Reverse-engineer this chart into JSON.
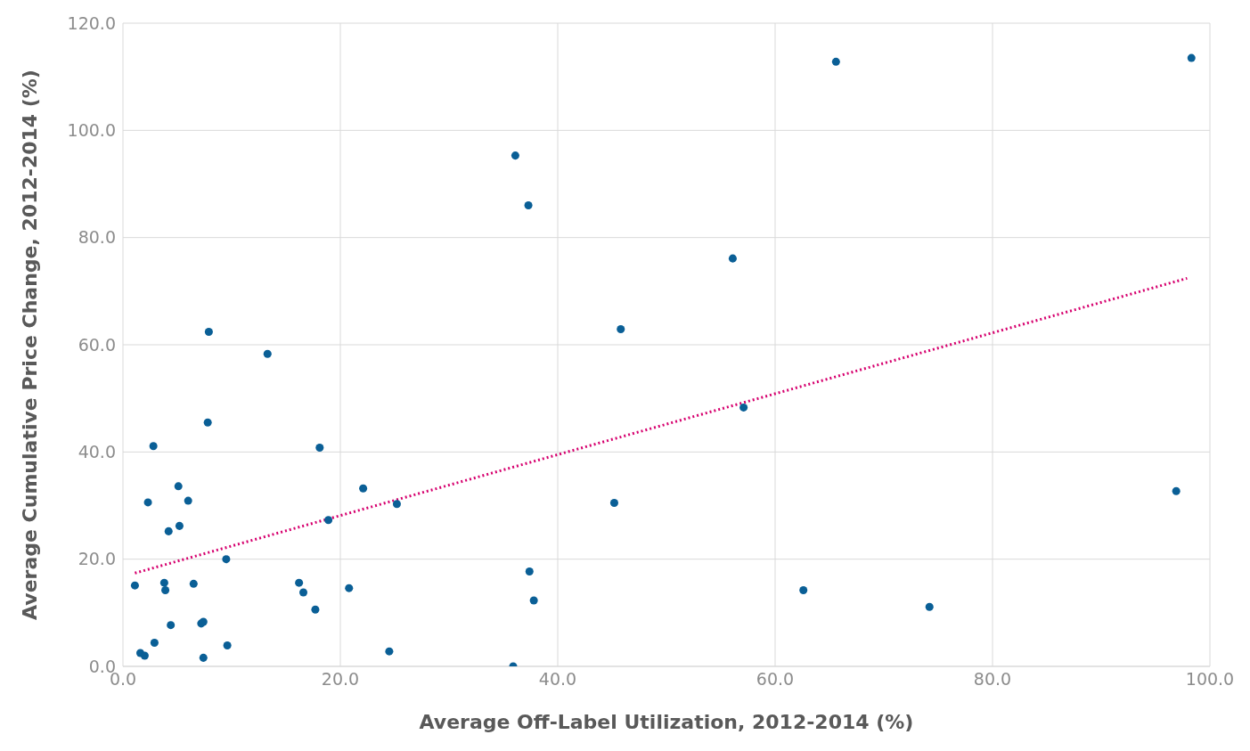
{
  "chart_data": {
    "type": "scatter",
    "xlabel": "Average Off-Label Utilization, 2012-2014 (%)",
    "ylabel": "Average Cumulative Price Change, 2012-2014 (%)",
    "xlim": [
      0,
      100
    ],
    "ylim": [
      0,
      120
    ],
    "xticks": [
      {
        "value": 0,
        "label": "0.0"
      },
      {
        "value": 20,
        "label": "20.0"
      },
      {
        "value": 40,
        "label": "40.0"
      },
      {
        "value": 60,
        "label": "60.0"
      },
      {
        "value": 80,
        "label": "80.0"
      },
      {
        "value": 100,
        "label": "100.0"
      }
    ],
    "yticks": [
      {
        "value": 0,
        "label": "0.0"
      },
      {
        "value": 20,
        "label": "20.0"
      },
      {
        "value": 40,
        "label": "40.0"
      },
      {
        "value": 60,
        "label": "60.0"
      },
      {
        "value": 80,
        "label": "80.0"
      },
      {
        "value": 100,
        "label": "100.0"
      },
      {
        "value": 120,
        "label": "120.0"
      }
    ],
    "grid": true,
    "series": [
      {
        "color": "#0a5f96",
        "marker": "circle",
        "x": [
          1.1,
          1.6,
          2.0,
          2.3,
          2.8,
          2.9,
          3.8,
          3.9,
          4.2,
          4.4,
          5.1,
          5.2,
          6.0,
          6.5,
          7.2,
          7.4,
          7.4,
          7.8,
          7.9,
          9.5,
          9.6,
          13.3,
          16.2,
          16.6,
          17.7,
          18.1,
          18.9,
          20.8,
          22.1,
          24.5,
          25.2,
          35.9,
          36.1,
          37.3,
          37.4,
          37.8,
          45.2,
          45.8,
          56.1,
          57.1,
          62.6,
          65.6,
          74.2,
          96.9,
          98.3
        ],
        "values": [
          15.1,
          2.5,
          2.0,
          30.6,
          41.1,
          4.4,
          15.6,
          14.2,
          25.2,
          7.7,
          33.6,
          26.2,
          30.9,
          15.4,
          8.0,
          8.3,
          1.6,
          45.5,
          62.4,
          20.0,
          3.9,
          58.3,
          15.6,
          13.8,
          10.6,
          40.8,
          27.3,
          14.6,
          33.2,
          2.8,
          30.3,
          0.0,
          95.3,
          86.0,
          17.7,
          12.3,
          30.5,
          62.9,
          76.1,
          48.3,
          14.2,
          112.8,
          11.1,
          32.7,
          113.5
        ]
      },
      {
        "type": "line",
        "color": "#d6006e",
        "line_style": "dotted",
        "marker": "none",
        "x": [
          1.1,
          97.9
        ],
        "values": [
          17.4,
          72.4
        ]
      }
    ]
  }
}
